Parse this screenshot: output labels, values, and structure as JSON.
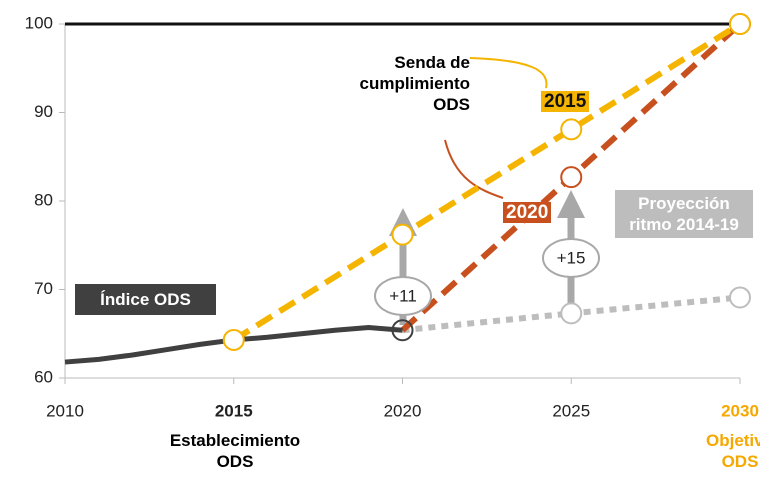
{
  "chart_data": {
    "type": "line",
    "xlim": [
      2010,
      2030
    ],
    "xticks": [
      2010,
      2015,
      2020,
      2025,
      2030
    ],
    "ylim": [
      60,
      100
    ],
    "yticks": [
      60,
      70,
      80,
      90,
      100
    ],
    "series": [
      {
        "name": "Índice ODS",
        "color": "#404040",
        "style": "solid",
        "x": [
          2010,
          2011,
          2012,
          2013,
          2014,
          2015,
          2016,
          2017,
          2018,
          2019,
          2020
        ],
        "values": [
          61.8,
          62.1,
          62.6,
          63.2,
          63.8,
          64.3,
          64.6,
          65.0,
          65.4,
          65.7,
          65.4
        ]
      },
      {
        "name": "2015",
        "color": "#f5b400",
        "style": "dashed",
        "x": [
          2015,
          2020,
          2025,
          2030
        ],
        "values": [
          64.3,
          76.2,
          88.1,
          100
        ]
      },
      {
        "name": "2020",
        "color": "#c8501e",
        "style": "dashed",
        "x": [
          2020,
          2025,
          2030
        ],
        "values": [
          65.4,
          82.7,
          100
        ]
      },
      {
        "name": "Proyección ritmo 2014-19",
        "color": "#bdbdbd",
        "style": "dotted",
        "x": [
          2020,
          2025,
          2030
        ],
        "values": [
          65.4,
          67.3,
          69.1
        ]
      }
    ],
    "annotations": {
      "senda": "Senda de cumplimiento ODS",
      "gain_2020": "+11",
      "gain_2025": "+15",
      "label_2015": "Establecimiento ODS",
      "label_2030": "Objetivo ODS"
    }
  }
}
